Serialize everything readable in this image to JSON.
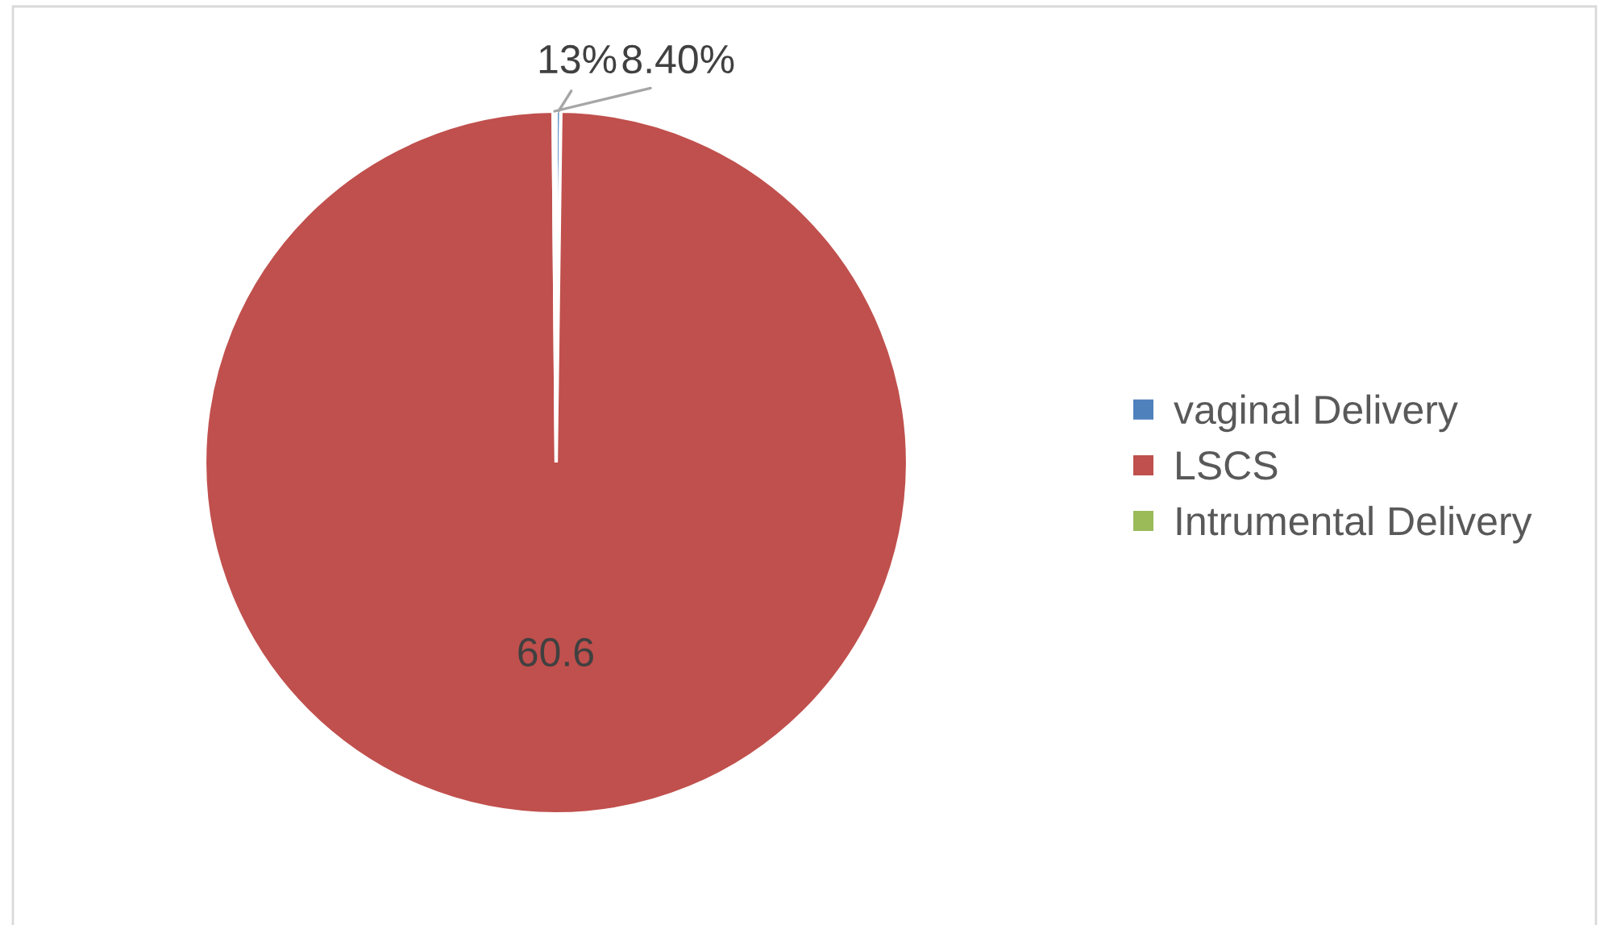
{
  "chart_data": {
    "type": "pie",
    "categories": [
      "vaginal Delivery",
      "LSCS",
      "Intrumental Delivery"
    ],
    "values": [
      0.13,
      60.6,
      0.084
    ],
    "colors": [
      "#4f81bd",
      "#c0504d",
      "#9bbb59"
    ],
    "value_labels": [
      "13%",
      "60.6",
      "8.40%"
    ],
    "legend": "right"
  }
}
